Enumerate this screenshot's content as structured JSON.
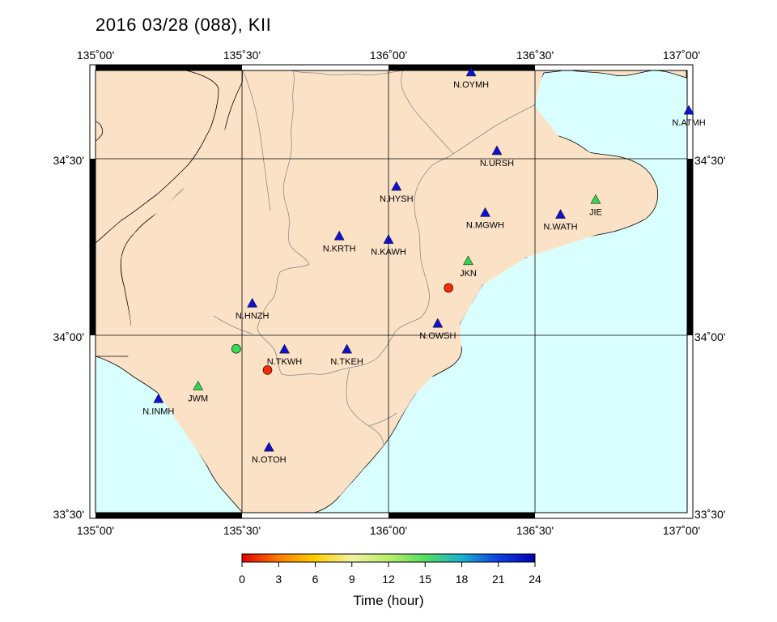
{
  "title": "2016 03/28 (088), KII",
  "axes": {
    "top_ticks": [
      "135˚00'",
      "135˚30'",
      "136˚00'",
      "136˚30'",
      "137˚00'"
    ],
    "bottom_ticks": [
      "135˚00'",
      "135˚30'",
      "136˚00'",
      "136˚30'",
      "137˚00'"
    ],
    "left_ticks": [
      "34˚30'",
      "34˚00'",
      "33˚30'"
    ],
    "right_ticks": [
      "34˚30'",
      "34˚00'",
      "33˚30'"
    ],
    "lon_range": [
      135.0,
      137.0
    ],
    "lat_range": [
      33.5,
      34.75
    ]
  },
  "colors": {
    "land": "#fbe2c6",
    "sea": "#daffff",
    "station_blue": "#1010d0",
    "station_green": "#34d34f",
    "event_red": "#ff2a00",
    "event_green": "#33dd55"
  },
  "stations": [
    {
      "label": "N.OYMH",
      "lon": 136.282,
      "lat": 34.745,
      "color": "blue"
    },
    {
      "label": "N.ATMH",
      "lon": 137.025,
      "lat": 34.637,
      "color": "blue"
    },
    {
      "label": "N.URSH",
      "lon": 136.37,
      "lat": 34.523,
      "color": "blue"
    },
    {
      "label": "N.HYSH",
      "lon": 136.027,
      "lat": 34.422,
      "color": "blue"
    },
    {
      "label": "N.MGWH",
      "lon": 136.33,
      "lat": 34.348,
      "color": "blue"
    },
    {
      "label": "N.WATH",
      "lon": 136.587,
      "lat": 34.343,
      "color": "blue"
    },
    {
      "label": "JIE",
      "lon": 136.707,
      "lat": 34.385,
      "color": "green"
    },
    {
      "label": "N.KRTH",
      "lon": 135.832,
      "lat": 34.282,
      "color": "blue"
    },
    {
      "label": "N.KAWH",
      "lon": 136.0,
      "lat": 34.272,
      "color": "blue"
    },
    {
      "label": "JKN",
      "lon": 136.272,
      "lat": 34.212,
      "color": "green"
    },
    {
      "label": "N.HNZH",
      "lon": 135.535,
      "lat": 34.092,
      "color": "blue"
    },
    {
      "label": "N.OWSH",
      "lon": 136.168,
      "lat": 34.035,
      "color": "blue"
    },
    {
      "label": "N.TKWH",
      "lon": 135.645,
      "lat": 33.962,
      "color": "blue"
    },
    {
      "label": "N.TKEH",
      "lon": 135.858,
      "lat": 33.962,
      "color": "blue"
    },
    {
      "label": "JWM",
      "lon": 135.35,
      "lat": 33.858,
      "color": "green"
    },
    {
      "label": "N.INMH",
      "lon": 135.215,
      "lat": 33.822,
      "color": "blue"
    },
    {
      "label": "N.OTOH",
      "lon": 135.592,
      "lat": 33.685,
      "color": "blue"
    }
  ],
  "events": [
    {
      "lon": 136.205,
      "lat": 34.135,
      "hour": 0.8
    },
    {
      "lon": 135.587,
      "lat": 33.903,
      "hour": 0.5
    },
    {
      "lon": 135.48,
      "lat": 33.963,
      "hour": 16.5
    }
  ],
  "colorbar": {
    "ticks": [
      "0",
      "3",
      "6",
      "9",
      "12",
      "15",
      "18",
      "21",
      "24"
    ],
    "label": "Time (hour)",
    "stops": [
      "#e40000",
      "#ff7a00",
      "#ffd000",
      "#f2f2a0",
      "#b8ee6a",
      "#52e060",
      "#1ab0d0",
      "#1040e0",
      "#0000b0"
    ]
  }
}
